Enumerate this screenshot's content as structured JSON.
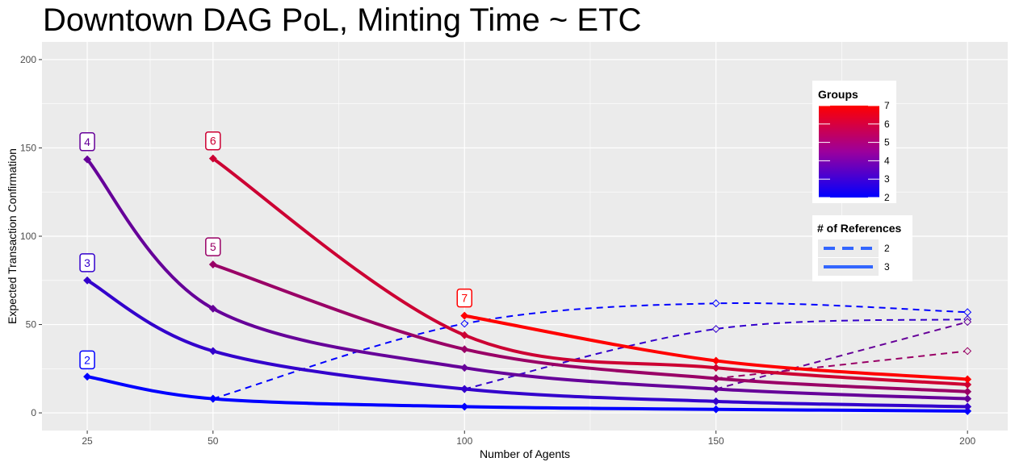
{
  "chart_data": {
    "type": "line",
    "title": "Downtown DAG PoL, Minting Time ~ ETC",
    "xlabel": "Number of Agents",
    "ylabel": "Expected Transaction Confirmation",
    "x_ticks": [
      "25",
      "50",
      "100",
      "150",
      "200"
    ],
    "y_ticks": [
      "0",
      "50",
      "100",
      "150",
      "200"
    ],
    "xlim": [
      16,
      208
    ],
    "ylim": [
      -10,
      210
    ],
    "grid": true,
    "series": [
      {
        "group": 2,
        "references": 3,
        "x": [
          25,
          50,
          100,
          150,
          200
        ],
        "y": [
          20.5,
          8,
          3.5,
          2,
          1
        ]
      },
      {
        "group": 2,
        "references": 2,
        "x": [
          50,
          100,
          150,
          200
        ],
        "y": [
          8,
          50.5,
          62,
          57
        ]
      },
      {
        "group": 3,
        "references": 3,
        "x": [
          25,
          50,
          100,
          150,
          200
        ],
        "y": [
          75,
          35,
          13.5,
          6.5,
          3.5
        ]
      },
      {
        "group": 3,
        "references": 2,
        "x": [
          100,
          150,
          200
        ],
        "y": [
          13.5,
          47.5,
          53
        ]
      },
      {
        "group": 4,
        "references": 3,
        "x": [
          25,
          50,
          100,
          150,
          200
        ],
        "y": [
          143.5,
          59,
          25.5,
          13.5,
          8
        ]
      },
      {
        "group": 4,
        "references": 2,
        "x": [
          150,
          200
        ],
        "y": [
          13.5,
          51.5
        ]
      },
      {
        "group": 5,
        "references": 3,
        "x": [
          50,
          100,
          150,
          200
        ],
        "y": [
          84,
          36,
          19.5,
          12
        ]
      },
      {
        "group": 5,
        "references": 2,
        "x": [
          150,
          200
        ],
        "y": [
          19.5,
          35
        ]
      },
      {
        "group": 6,
        "references": 3,
        "x": [
          50,
          100,
          150,
          200
        ],
        "y": [
          144,
          44,
          25.5,
          16
        ]
      },
      {
        "group": 7,
        "references": 3,
        "x": [
          100,
          150,
          200
        ],
        "y": [
          55,
          29.5,
          19
        ]
      }
    ],
    "point_labels": [
      {
        "text": "2",
        "group": 2,
        "x": 25,
        "y": 30
      },
      {
        "text": "3",
        "group": 3,
        "x": 25,
        "y": 85
      },
      {
        "text": "4",
        "group": 4,
        "x": 25,
        "y": 153.5
      },
      {
        "text": "5",
        "group": 5,
        "x": 50,
        "y": 94
      },
      {
        "text": "6",
        "group": 6,
        "x": 50,
        "y": 154
      },
      {
        "text": "7",
        "group": 7,
        "x": 100,
        "y": 65
      }
    ],
    "legend_groups": {
      "title": "Groups",
      "breaks": [
        "7",
        "6",
        "5",
        "4",
        "3",
        "2"
      ],
      "range": [
        2,
        7
      ],
      "colors": [
        "#0000FF",
        "#FF0000"
      ]
    },
    "legend_refs": {
      "title": "# of References",
      "entries": [
        {
          "label": "2",
          "linetype": "dashed"
        },
        {
          "label": "3",
          "linetype": "solid"
        }
      ],
      "color": "#3366FF"
    },
    "legend_placement": "right-inside",
    "panel_color": "#EBEBEB",
    "grid_color": "#FFFFFF"
  }
}
